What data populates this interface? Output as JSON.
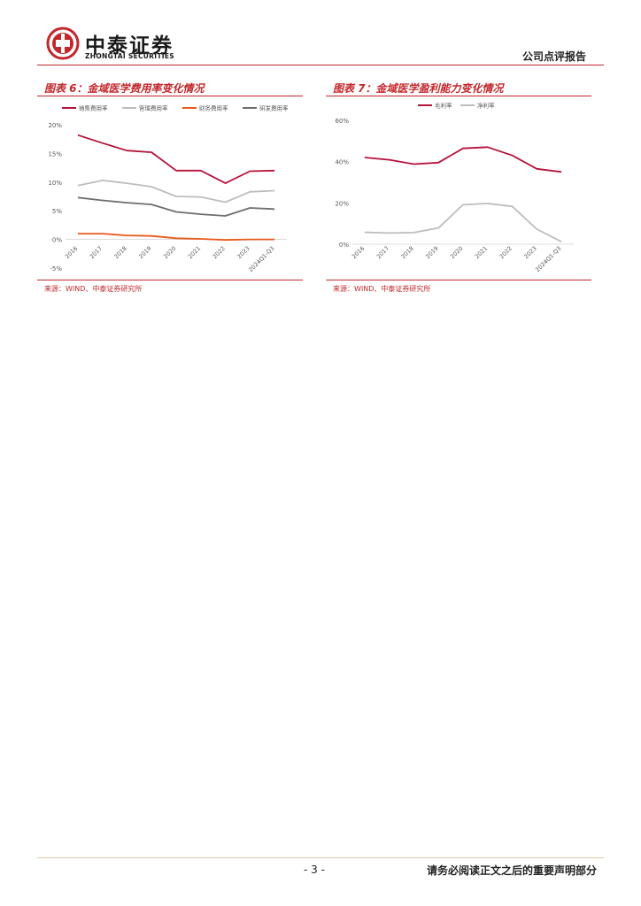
{
  "header": {
    "company_cn": "中泰证券",
    "company_en": "ZHONGTAI SECURITIES",
    "report_type": "公司点评报告"
  },
  "figures": [
    {
      "title": "图表 6：金域医学费用率变化情况",
      "source": "来源：WIND、中泰证券研究所"
    },
    {
      "title": "图表 7：金域医学盈利能力变化情况",
      "source": "来源：WIND、中泰证券研究所"
    }
  ],
  "chart_data": [
    {
      "type": "line",
      "title": "金域医学费用率变化情况",
      "categories": [
        "2016",
        "2017",
        "2018",
        "2019",
        "2020",
        "2021",
        "2022",
        "2023",
        "2024Q1-Q3"
      ],
      "y_ticks": [
        "20%",
        "15%",
        "10%",
        "5%",
        "0%",
        "-5%"
      ],
      "ylim": [
        -5,
        20
      ],
      "series": [
        {
          "name": "销售费用率",
          "color": "#b5123a",
          "values": [
            18.2,
            16.8,
            15.5,
            15.2,
            12.0,
            12.0,
            9.8,
            11.9,
            12.0
          ]
        },
        {
          "name": "管理费用率",
          "color": "#bdbdbd",
          "values": [
            9.4,
            10.3,
            9.8,
            9.2,
            7.5,
            7.4,
            6.5,
            8.3,
            8.5
          ]
        },
        {
          "name": "财务费用率",
          "color": "#e8591a",
          "values": [
            1.0,
            1.0,
            0.7,
            0.6,
            0.2,
            0.1,
            -0.1,
            0.0,
            0.0
          ]
        },
        {
          "name": "研发费用率",
          "color": "#6e6e6e",
          "values": [
            7.3,
            6.8,
            6.4,
            6.1,
            4.8,
            4.4,
            4.1,
            5.5,
            5.3
          ]
        }
      ]
    },
    {
      "type": "line",
      "title": "金域医学盈利能力变化情况",
      "categories": [
        "2016",
        "2017",
        "2018",
        "2019",
        "2020",
        "2021",
        "2022",
        "2023",
        "2024Q1-Q3"
      ],
      "y_ticks": [
        "60%",
        "40%",
        "20%",
        "0%"
      ],
      "ylim": [
        0,
        60
      ],
      "series": [
        {
          "name": "毛利率",
          "color": "#b5123a",
          "values": [
            42.0,
            40.9,
            38.8,
            39.5,
            46.4,
            47.0,
            43.0,
            36.5,
            35.0
          ]
        },
        {
          "name": "净利率",
          "color": "#bdbdbd",
          "values": [
            5.8,
            5.4,
            5.6,
            7.9,
            19.1,
            19.7,
            18.3,
            7.3,
            1.2
          ]
        }
      ]
    }
  ],
  "footer": {
    "page_number": "- 3 -",
    "disclaimer": "请务必阅读正文之后的重要声明部分"
  }
}
